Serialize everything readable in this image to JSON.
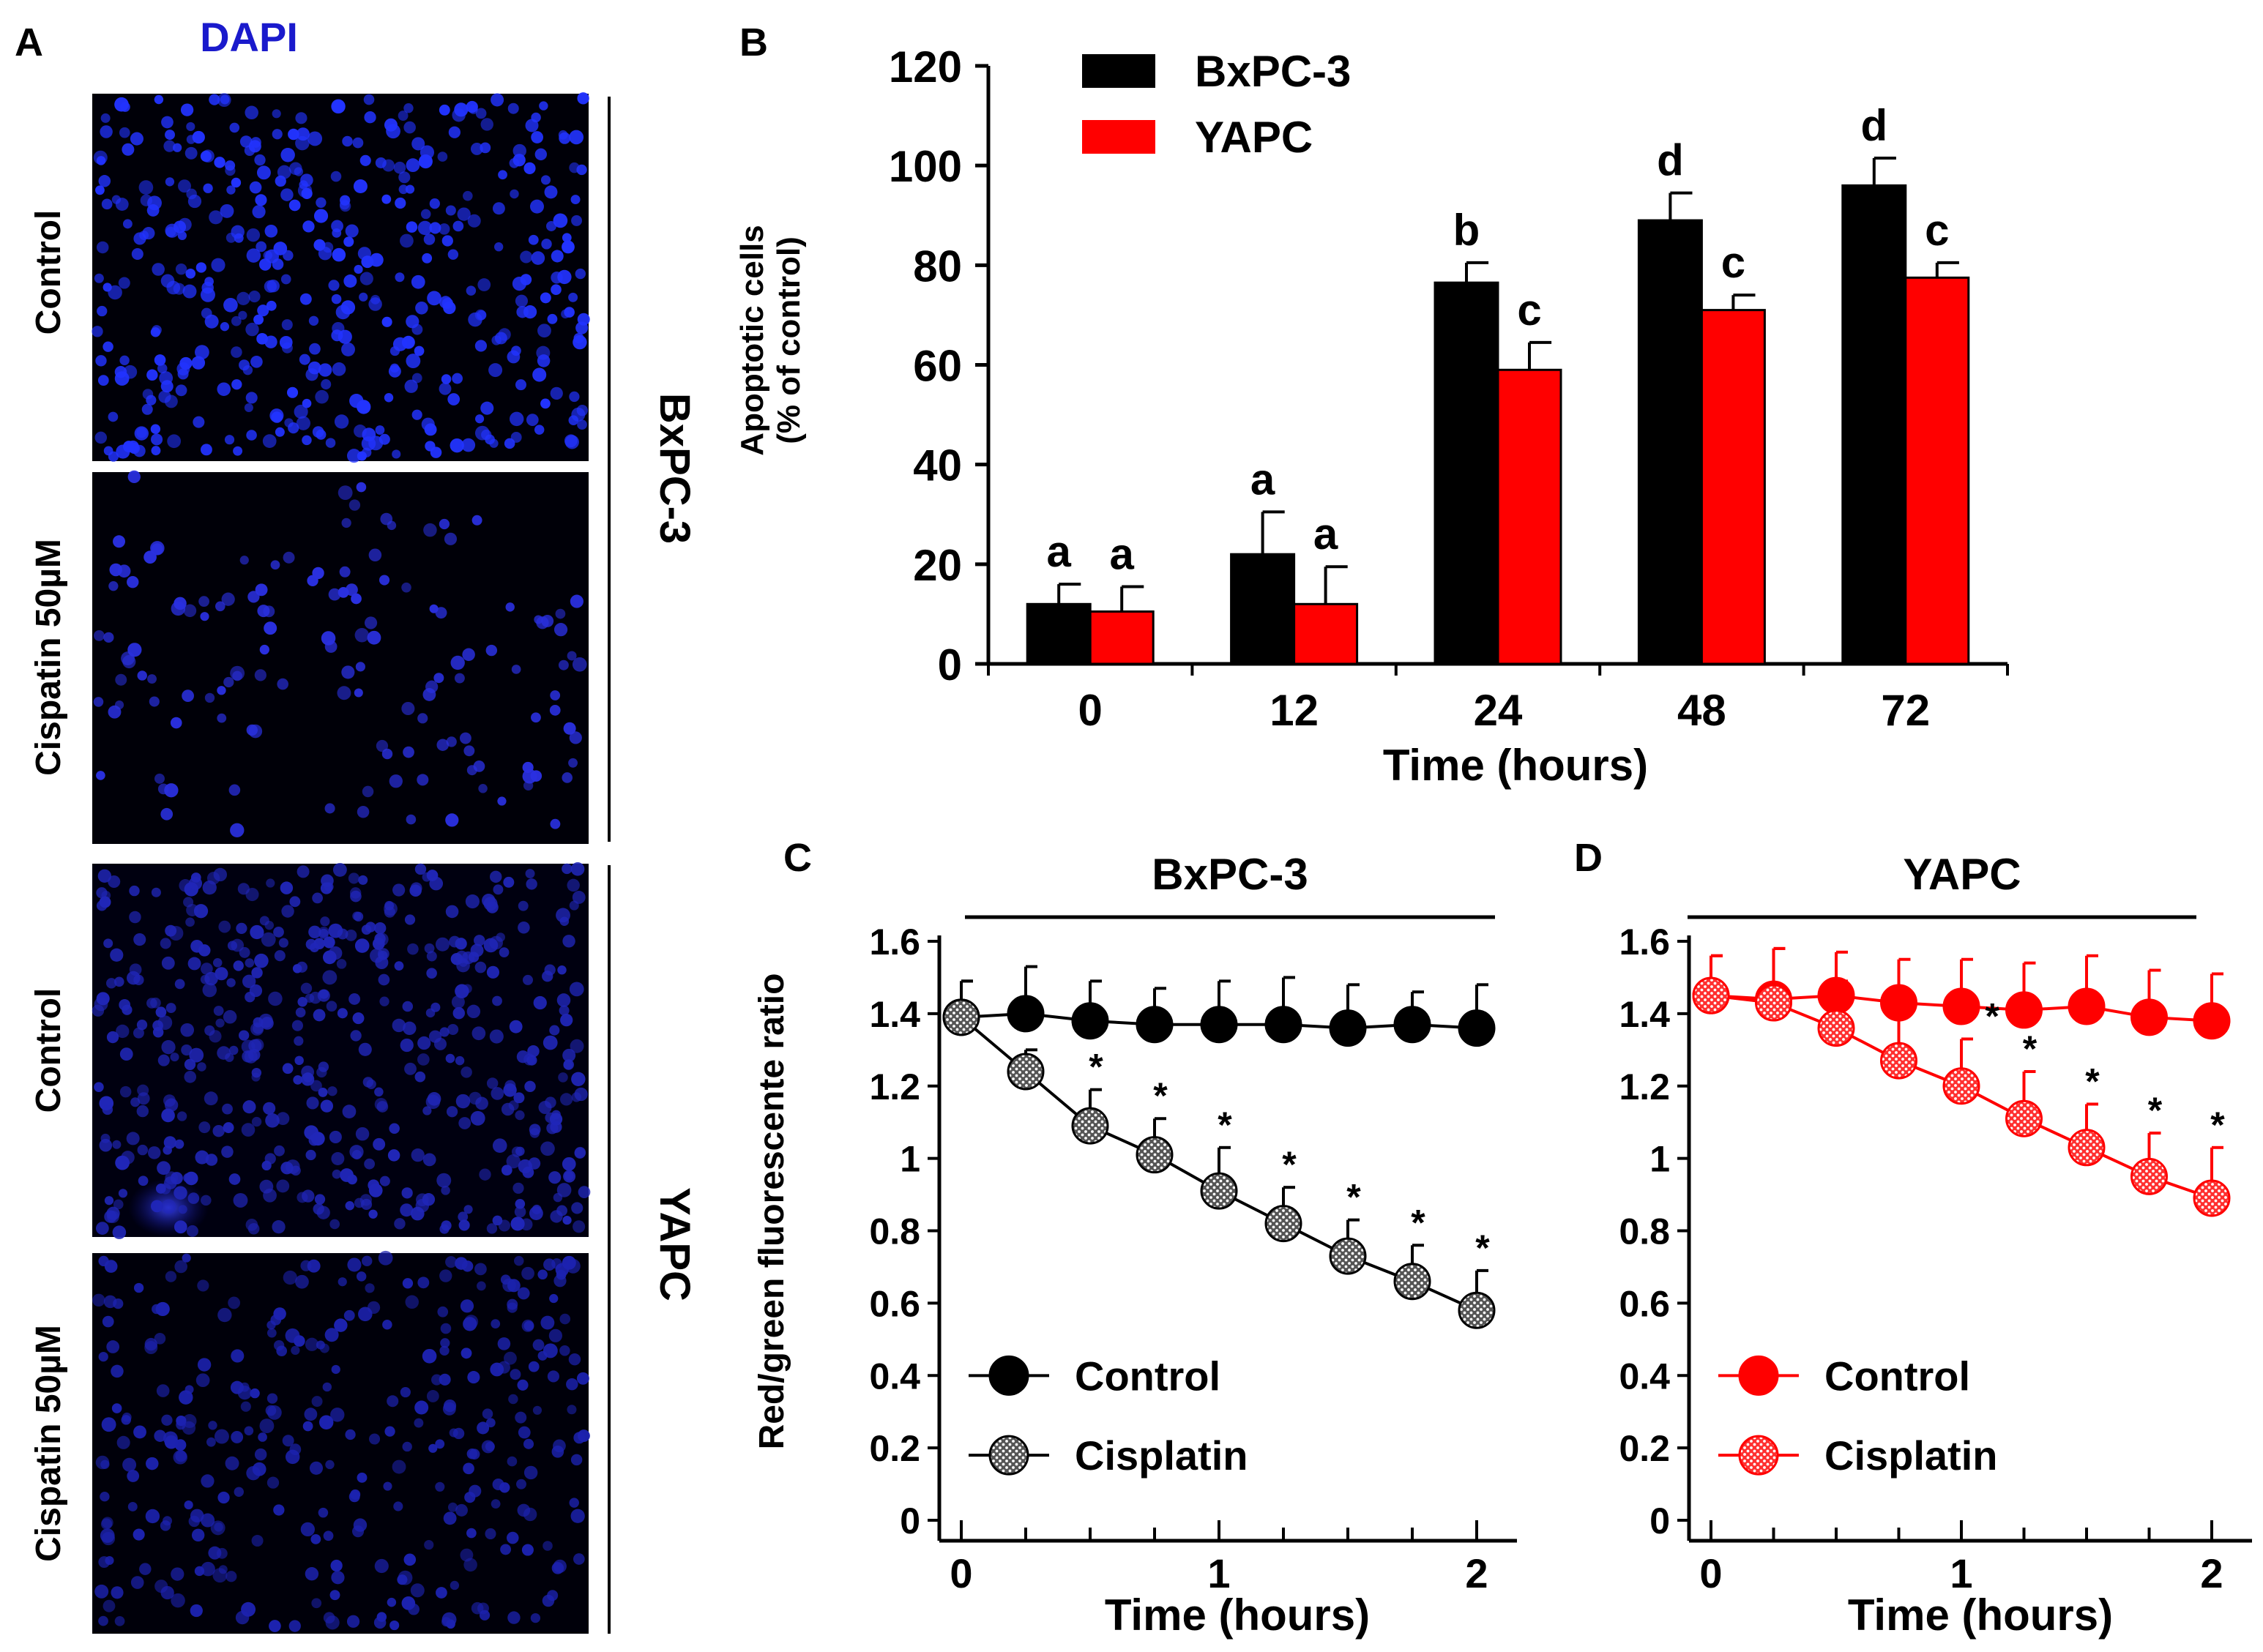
{
  "panel_a": {
    "label": "A",
    "stain_label": "DAPI",
    "stain_color": "#1a1acc",
    "row_labels": [
      "Control",
      "Cispatin 50µM",
      "Control",
      "Cispatin 50µM"
    ],
    "group_labels": [
      "BxPC-3",
      "YAPC"
    ]
  },
  "panel_b": {
    "label": "B"
  },
  "panel_c": {
    "label": "C"
  },
  "panel_d": {
    "label": "D"
  },
  "colors": {
    "bxpc3": "#000000",
    "yapc": "#ff0000"
  },
  "chart_data": [
    {
      "id": "B",
      "type": "bar",
      "title": "",
      "xlabel": "Time (hours)",
      "ylabel_lines": [
        "Apoptotic cells",
        "(% of control)"
      ],
      "categories": [
        "0",
        "12",
        "24",
        "48",
        "72"
      ],
      "ylim": [
        0,
        120
      ],
      "yticks": [
        0,
        20,
        40,
        60,
        80,
        100,
        120
      ],
      "legend_position": "top-left",
      "series": [
        {
          "name": "BxPC-3",
          "color": "#000000",
          "values": [
            12,
            22,
            76.5,
            89,
            96
          ],
          "errors": [
            4,
            8.5,
            4,
            5.5,
            5.5
          ],
          "letters": [
            "a",
            "a",
            "b",
            "d",
            "d"
          ]
        },
        {
          "name": "YAPC",
          "color": "#ff0000",
          "values": [
            10.5,
            12,
            59,
            71,
            77.5
          ],
          "errors": [
            5,
            7.5,
            5.5,
            3,
            3
          ],
          "letters": [
            "a",
            "a",
            "c",
            "c",
            "c"
          ]
        }
      ]
    },
    {
      "id": "C",
      "type": "line",
      "title": "BxPC-3",
      "xlabel": "Time (hours)",
      "ylabel": "Red/green fluorescente ratio",
      "xlim": [
        0,
        2
      ],
      "xticks": [
        0,
        1,
        2
      ],
      "ylim": [
        0,
        1.6
      ],
      "yticks": [
        "0",
        "0.2",
        "0.4",
        "0.6",
        "0.8",
        "1",
        "1.2",
        "1.4",
        "1.6"
      ],
      "legend_position": "bottom-left",
      "series": [
        {
          "name": "Control",
          "color": "#000000",
          "style": "solid",
          "x": [
            0,
            0.25,
            0.5,
            0.75,
            1,
            1.25,
            1.5,
            1.75,
            2
          ],
          "y": [
            1.39,
            1.4,
            1.38,
            1.37,
            1.37,
            1.37,
            1.36,
            1.37,
            1.36
          ],
          "err": [
            0.1,
            0.13,
            0.11,
            0.1,
            0.12,
            0.13,
            0.12,
            0.09,
            0.12
          ]
        },
        {
          "name": "Cisplatin",
          "color": "#000000",
          "style": "hatched",
          "x": [
            0,
            0.25,
            0.5,
            0.75,
            1,
            1.25,
            1.5,
            1.75,
            2
          ],
          "y": [
            1.39,
            1.24,
            1.09,
            1.01,
            0.91,
            0.82,
            0.73,
            0.66,
            0.58
          ],
          "err": [
            0.1,
            0.06,
            0.1,
            0.1,
            0.12,
            0.1,
            0.1,
            0.1,
            0.11
          ]
        }
      ],
      "significance_marker": "*",
      "significance_x": [
        0.5,
        0.75,
        1,
        1.25,
        1.5,
        1.75,
        2
      ]
    },
    {
      "id": "D",
      "type": "line",
      "title": "YAPC",
      "xlabel": "Time (hours)",
      "ylabel": "",
      "xlim": [
        0,
        2
      ],
      "xticks": [
        0,
        1,
        2
      ],
      "ylim": [
        0,
        1.6
      ],
      "yticks": [
        "0",
        "0.2",
        "0.4",
        "0.6",
        "0.8",
        "1",
        "1.2",
        "1.4",
        "1.6"
      ],
      "legend_position": "bottom-left",
      "series": [
        {
          "name": "Control",
          "color": "#ff0000",
          "style": "solid",
          "x": [
            0,
            0.25,
            0.5,
            0.75,
            1,
            1.25,
            1.5,
            1.75,
            2
          ],
          "y": [
            1.45,
            1.44,
            1.45,
            1.43,
            1.42,
            1.41,
            1.42,
            1.39,
            1.38
          ],
          "err": [
            0.11,
            0.14,
            0.12,
            0.12,
            0.13,
            0.13,
            0.14,
            0.13,
            0.13
          ]
        },
        {
          "name": "Cisplatin",
          "color": "#ff0000",
          "style": "hatched",
          "x": [
            0,
            0.25,
            0.5,
            0.75,
            1,
            1.25,
            1.5,
            1.75,
            2
          ],
          "y": [
            1.45,
            1.43,
            1.36,
            1.27,
            1.2,
            1.11,
            1.03,
            0.95,
            0.89
          ],
          "err": [
            0.11,
            0.15,
            0.13,
            0.14,
            0.13,
            0.13,
            0.12,
            0.12,
            0.14
          ]
        }
      ],
      "significance_marker": "*",
      "significance_x": [
        1.1,
        1.25,
        1.5,
        1.75,
        2
      ]
    }
  ]
}
